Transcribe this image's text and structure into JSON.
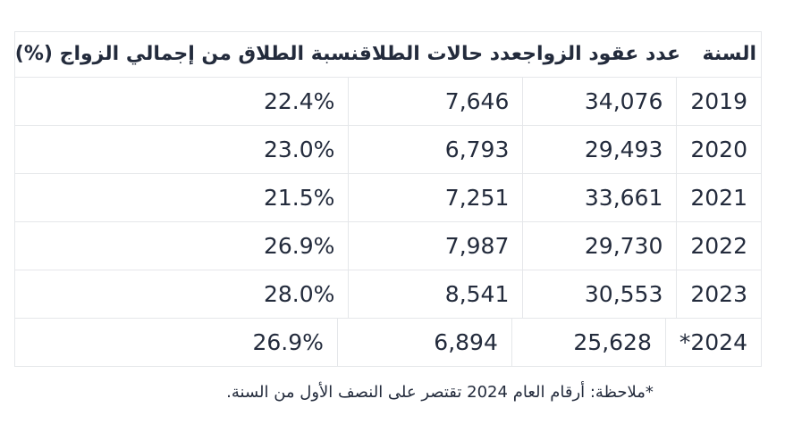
{
  "colors": {
    "text": "#232b3c",
    "border": "#e5e7ea",
    "background": "#ffffff"
  },
  "table": {
    "columns": [
      {
        "key": "year",
        "label": "السنة"
      },
      {
        "key": "marriages",
        "label": "عدد عقود الزواج"
      },
      {
        "key": "divorces",
        "label": "عدد حالات الطلاق"
      },
      {
        "key": "rate",
        "label": "نسبة الطلاق من إجمالي الزواج (%)"
      }
    ],
    "rows": [
      {
        "year": "2019",
        "marriages": "34,076",
        "divorces": "7,646",
        "rate": "22.4%"
      },
      {
        "year": "2020",
        "marriages": "29,493",
        "divorces": "6,793",
        "rate": "23.0%"
      },
      {
        "year": "2021",
        "marriages": "33,661",
        "divorces": "7,251",
        "rate": "21.5%"
      },
      {
        "year": "2022",
        "marriages": "29,730",
        "divorces": "7,987",
        "rate": "26.9%"
      },
      {
        "year": "2023",
        "marriages": "30,553",
        "divorces": "8,541",
        "rate": "28.0%"
      },
      {
        "year": "2024*",
        "marriages": "25,628",
        "divorces": "6,894",
        "rate": "26.9%"
      }
    ]
  },
  "footnote": "*ملاحظة: أرقام العام 2024 تقتصر على النصف الأول من السنة.",
  "chart_data": {
    "type": "table",
    "title": "",
    "columns": [
      "السنة",
      "عدد عقود الزواج",
      "عدد حالات الطلاق",
      "نسبة الطلاق من إجمالي الزواج (%)"
    ],
    "rows": [
      [
        "2019",
        34076,
        7646,
        22.4
      ],
      [
        "2020",
        29493,
        6793,
        23.0
      ],
      [
        "2021",
        33661,
        7251,
        21.5
      ],
      [
        "2022",
        29730,
        7987,
        26.9
      ],
      [
        "2023",
        30553,
        8541,
        28.0
      ],
      [
        "2024*",
        25628,
        6894,
        26.9
      ]
    ],
    "note": "*ملاحظة: أرقام العام 2024 تقتصر على النصف الأول من السنة."
  }
}
